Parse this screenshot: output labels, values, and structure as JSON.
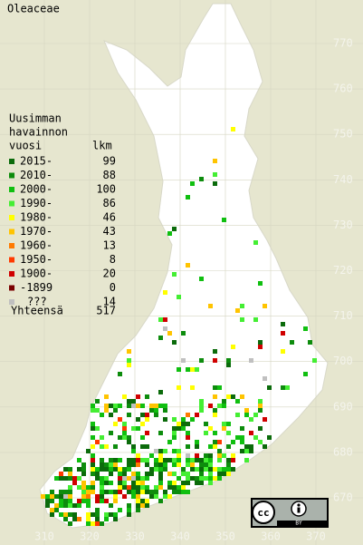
{
  "title": "Oleaceae",
  "legend": {
    "header": [
      "Uusimman",
      "havainnon",
      "vuosi"
    ],
    "count_header": "lkm",
    "rows": [
      {
        "label": "2015-",
        "count": 99,
        "color": "#0b6b0b"
      },
      {
        "label": "2010-",
        "count": 88,
        "color": "#0d8c0d"
      },
      {
        "label": "2000-",
        "count": 100,
        "color": "#10bf10"
      },
      {
        "label": "1990-",
        "count": 86,
        "color": "#44ee33"
      },
      {
        "label": "1980-",
        "count": 46,
        "color": "#ffff00"
      },
      {
        "label": "1970-",
        "count": 43,
        "color": "#ffc400"
      },
      {
        "label": "1960-",
        "count": 13,
        "color": "#ff7a00"
      },
      {
        "label": "1950-",
        "count": 8,
        "color": "#ff3a00"
      },
      {
        "label": "1900-",
        "count": 20,
        "color": "#d00000"
      },
      {
        "label": "-1899",
        "count": 0,
        "color": "#7a0000"
      },
      {
        "label": "???",
        "count": 14,
        "color": "#c0c0c0"
      }
    ],
    "total_label": "Yhteensä",
    "total": 517
  },
  "yticks": [
    770,
    760,
    750,
    740,
    730,
    720,
    710,
    700,
    690,
    680,
    670
  ],
  "xticks": [
    310,
    320,
    330,
    340,
    350,
    360,
    370
  ],
  "license": {
    "cc": "cc",
    "by": "BY"
  }
}
